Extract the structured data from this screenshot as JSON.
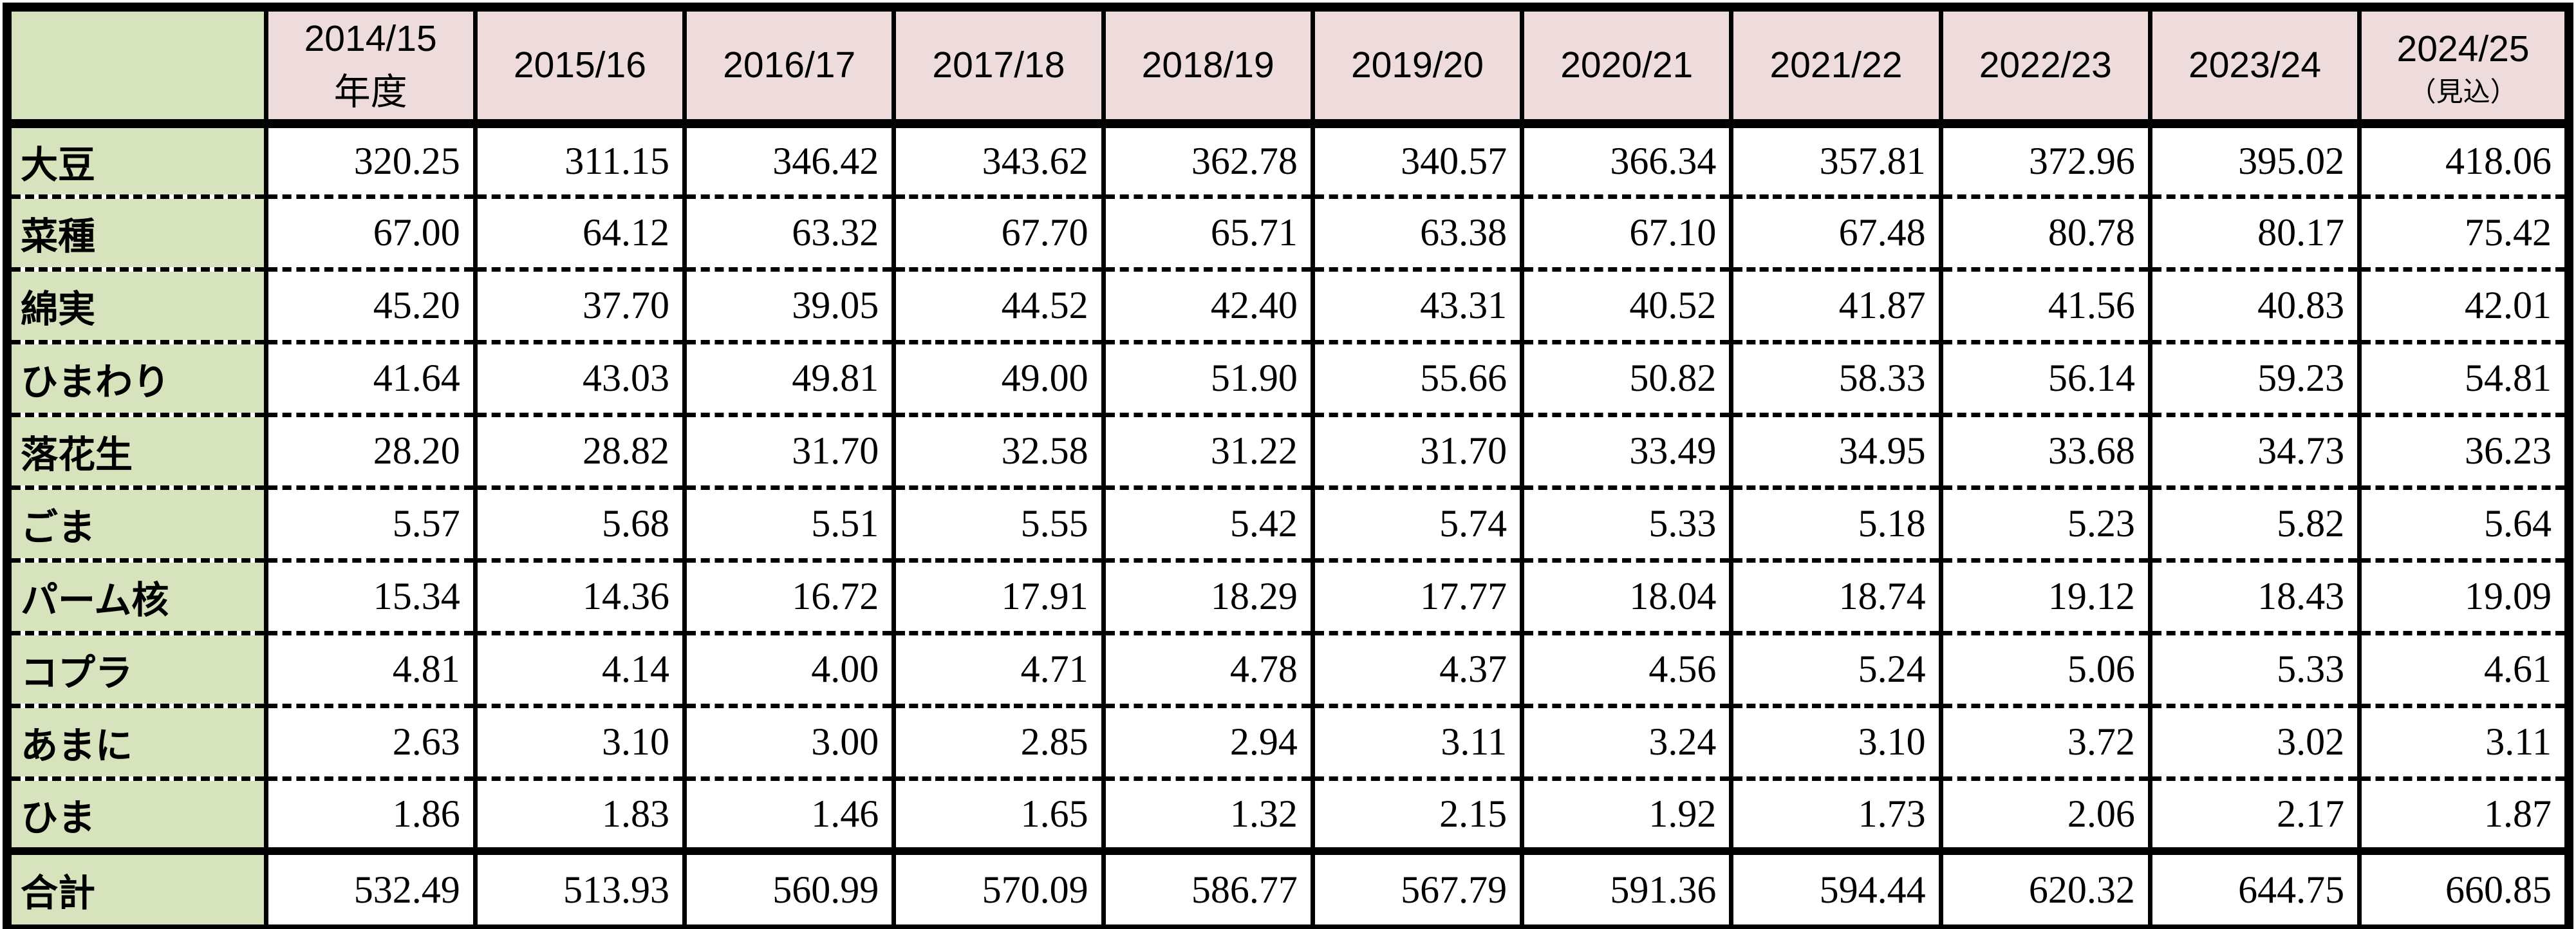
{
  "colors": {
    "header_bg": "#EEDBDB",
    "label_column_bg": "#D6E3BC",
    "grid": "#000000",
    "cell_bg": "#FFFFFF"
  },
  "table": {
    "corner_label": "",
    "columns": [
      {
        "label": "2014/15",
        "sub": "年度",
        "small_sub": false
      },
      {
        "label": "2015/16"
      },
      {
        "label": "2016/17"
      },
      {
        "label": "2017/18"
      },
      {
        "label": "2018/19"
      },
      {
        "label": "2019/20"
      },
      {
        "label": "2020/21"
      },
      {
        "label": "2021/22"
      },
      {
        "label": "2022/23"
      },
      {
        "label": "2023/24"
      },
      {
        "label": "2024/25",
        "sub": "（見込）",
        "small_sub": true
      }
    ],
    "rows": [
      {
        "label": "大豆",
        "values": [
          "320.25",
          "311.15",
          "346.42",
          "343.62",
          "362.78",
          "340.57",
          "366.34",
          "357.81",
          "372.96",
          "395.02",
          "418.06"
        ]
      },
      {
        "label": "菜種",
        "values": [
          "67.00",
          "64.12",
          "63.32",
          "67.70",
          "65.71",
          "63.38",
          "67.10",
          "67.48",
          "80.78",
          "80.17",
          "75.42"
        ]
      },
      {
        "label": "綿実",
        "values": [
          "45.20",
          "37.70",
          "39.05",
          "44.52",
          "42.40",
          "43.31",
          "40.52",
          "41.87",
          "41.56",
          "40.83",
          "42.01"
        ]
      },
      {
        "label": "ひまわり",
        "values": [
          "41.64",
          "43.03",
          "49.81",
          "49.00",
          "51.90",
          "55.66",
          "50.82",
          "58.33",
          "56.14",
          "59.23",
          "54.81"
        ]
      },
      {
        "label": "落花生",
        "values": [
          "28.20",
          "28.82",
          "31.70",
          "32.58",
          "31.22",
          "31.70",
          "33.49",
          "34.95",
          "33.68",
          "34.73",
          "36.23"
        ]
      },
      {
        "label": "ごま",
        "values": [
          "5.57",
          "5.68",
          "5.51",
          "5.55",
          "5.42",
          "5.74",
          "5.33",
          "5.18",
          "5.23",
          "5.82",
          "5.64"
        ]
      },
      {
        "label": "パーム核",
        "values": [
          "15.34",
          "14.36",
          "16.72",
          "17.91",
          "18.29",
          "17.77",
          "18.04",
          "18.74",
          "19.12",
          "18.43",
          "19.09"
        ]
      },
      {
        "label": "コプラ",
        "values": [
          "4.81",
          "4.14",
          "4.00",
          "4.71",
          "4.78",
          "4.37",
          "4.56",
          "5.24",
          "5.06",
          "5.33",
          "4.61"
        ]
      },
      {
        "label": "あまに",
        "values": [
          "2.63",
          "3.10",
          "3.00",
          "2.85",
          "2.94",
          "3.11",
          "3.24",
          "3.10",
          "3.72",
          "3.02",
          "3.11"
        ]
      },
      {
        "label": "ひま",
        "values": [
          "1.86",
          "1.83",
          "1.46",
          "1.65",
          "1.32",
          "2.15",
          "1.92",
          "1.73",
          "2.06",
          "2.17",
          "1.87"
        ]
      }
    ],
    "total_row": {
      "label": "合計",
      "values": [
        "532.49",
        "513.93",
        "560.99",
        "570.09",
        "586.77",
        "567.79",
        "591.36",
        "594.44",
        "620.32",
        "644.75",
        "660.85"
      ]
    }
  },
  "chart_data": {
    "type": "table",
    "title": "",
    "categories": [
      "2014/15 年度",
      "2015/16",
      "2016/17",
      "2017/18",
      "2018/19",
      "2019/20",
      "2020/21",
      "2021/22",
      "2022/23",
      "2023/24",
      "2024/25（見込）"
    ],
    "series": [
      {
        "name": "大豆",
        "values": [
          320.25,
          311.15,
          346.42,
          343.62,
          362.78,
          340.57,
          366.34,
          357.81,
          372.96,
          395.02,
          418.06
        ]
      },
      {
        "name": "菜種",
        "values": [
          67.0,
          64.12,
          63.32,
          67.7,
          65.71,
          63.38,
          67.1,
          67.48,
          80.78,
          80.17,
          75.42
        ]
      },
      {
        "name": "綿実",
        "values": [
          45.2,
          37.7,
          39.05,
          44.52,
          42.4,
          43.31,
          40.52,
          41.87,
          41.56,
          40.83,
          42.01
        ]
      },
      {
        "name": "ひまわり",
        "values": [
          41.64,
          43.03,
          49.81,
          49.0,
          51.9,
          55.66,
          50.82,
          58.33,
          56.14,
          59.23,
          54.81
        ]
      },
      {
        "name": "落花生",
        "values": [
          28.2,
          28.82,
          31.7,
          32.58,
          31.22,
          31.7,
          33.49,
          34.95,
          33.68,
          34.73,
          36.23
        ]
      },
      {
        "name": "ごま",
        "values": [
          5.57,
          5.68,
          5.51,
          5.55,
          5.42,
          5.74,
          5.33,
          5.18,
          5.23,
          5.82,
          5.64
        ]
      },
      {
        "name": "パーム核",
        "values": [
          15.34,
          14.36,
          16.72,
          17.91,
          18.29,
          17.77,
          18.04,
          18.74,
          19.12,
          18.43,
          19.09
        ]
      },
      {
        "name": "コプラ",
        "values": [
          4.81,
          4.14,
          4.0,
          4.71,
          4.78,
          4.37,
          4.56,
          5.24,
          5.06,
          5.33,
          4.61
        ]
      },
      {
        "name": "あまに",
        "values": [
          2.63,
          3.1,
          3.0,
          2.85,
          2.94,
          3.11,
          3.24,
          3.1,
          3.72,
          3.02,
          3.11
        ]
      },
      {
        "name": "ひま",
        "values": [
          1.86,
          1.83,
          1.46,
          1.65,
          1.32,
          2.15,
          1.92,
          1.73,
          2.06,
          2.17,
          1.87
        ]
      },
      {
        "name": "合計",
        "values": [
          532.49,
          513.93,
          560.99,
          570.09,
          586.77,
          567.79,
          591.36,
          594.44,
          620.32,
          644.75,
          660.85
        ]
      }
    ]
  }
}
